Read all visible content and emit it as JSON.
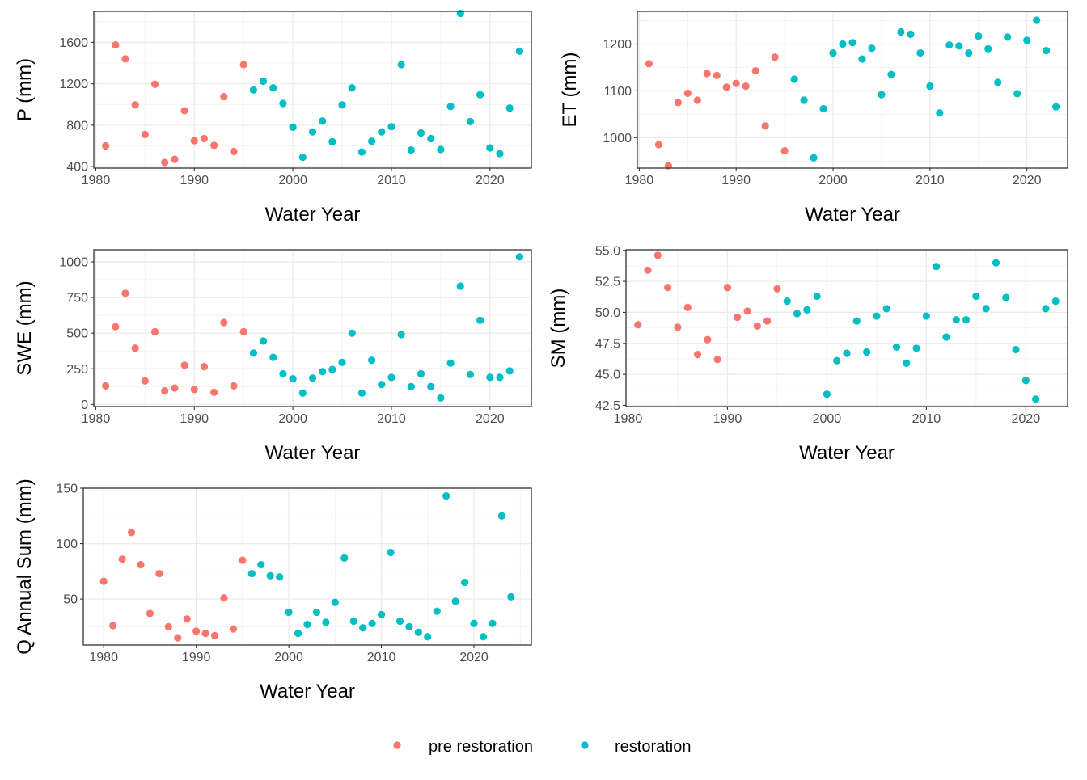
{
  "colors": {
    "pre_restoration": "#F8766D",
    "restoration": "#00BFC4"
  },
  "legend": {
    "position": "bottom",
    "entries": [
      {
        "key": "pre_restoration",
        "label": "pre restoration"
      },
      {
        "key": "restoration",
        "label": "restoration"
      }
    ]
  },
  "chart_data": [
    {
      "id": "p",
      "type": "scatter",
      "xlabel": "Water Year",
      "ylabel": "P (mm)",
      "xlim": [
        1979.8,
        2024.2
      ],
      "ylim": [
        385,
        1900
      ],
      "xticks": [
        1980,
        1990,
        2000,
        2010,
        2020
      ],
      "yticks": [
        400,
        800,
        1200,
        1600
      ],
      "ytick_labels": [
        "400",
        "800",
        "1200",
        "1600"
      ],
      "grid": true,
      "series": [
        {
          "name": "pre restoration",
          "key": "pre_restoration",
          "x": [
            1981,
            1982,
            1983,
            1984,
            1985,
            1986,
            1987,
            1988,
            1989,
            1990,
            1991,
            1992,
            1993,
            1994,
            1995
          ],
          "y": [
            600,
            1575,
            1440,
            995,
            710,
            1195,
            440,
            470,
            940,
            650,
            670,
            605,
            1075,
            545,
            1385
          ]
        },
        {
          "name": "restoration",
          "key": "restoration",
          "x": [
            1996,
            1997,
            1998,
            1999,
            2000,
            2001,
            2002,
            2003,
            2004,
            2005,
            2006,
            2007,
            2008,
            2009,
            2010,
            2011,
            2012,
            2013,
            2014,
            2015,
            2016,
            2017,
            2018,
            2019,
            2020,
            2021,
            2022,
            2023
          ],
          "y": [
            1140,
            1225,
            1160,
            1010,
            780,
            490,
            735,
            840,
            640,
            995,
            1160,
            540,
            645,
            735,
            785,
            1385,
            560,
            725,
            670,
            565,
            980,
            1880,
            835,
            1095,
            580,
            525,
            965,
            1515
          ]
        }
      ]
    },
    {
      "id": "et",
      "type": "scatter",
      "xlabel": "Water Year",
      "ylabel": "ET (mm)",
      "xlim": [
        1979.8,
        2024.2
      ],
      "ylim": [
        935,
        1270
      ],
      "xticks": [
        1980,
        1990,
        2000,
        2010,
        2020
      ],
      "yticks": [
        1000,
        1100,
        1200
      ],
      "ytick_labels": [
        "1000",
        "1100",
        "1200"
      ],
      "grid": true,
      "series": [
        {
          "name": "pre restoration",
          "key": "pre_restoration",
          "x": [
            1981,
            1982,
            1983,
            1984,
            1985,
            1986,
            1987,
            1988,
            1989,
            1990,
            1991,
            1992,
            1993,
            1994,
            1995
          ],
          "y": [
            1158,
            985,
            940,
            1075,
            1095,
            1080,
            1137,
            1133,
            1108,
            1116,
            1110,
            1143,
            1025,
            1172,
            972
          ]
        },
        {
          "name": "restoration",
          "key": "restoration",
          "x": [
            1996,
            1997,
            1998,
            1999,
            2000,
            2001,
            2002,
            2003,
            2004,
            2005,
            2006,
            2007,
            2008,
            2009,
            2010,
            2011,
            2012,
            2013,
            2014,
            2015,
            2016,
            2017,
            2018,
            2019,
            2020,
            2021,
            2022,
            2023
          ],
          "y": [
            1125,
            1080,
            957,
            1062,
            1181,
            1200,
            1203,
            1168,
            1191,
            1092,
            1135,
            1226,
            1221,
            1181,
            1110,
            1053,
            1198,
            1196,
            1181,
            1217,
            1190,
            1118,
            1215,
            1094,
            1208,
            1251,
            1186,
            1066
          ]
        }
      ]
    },
    {
      "id": "swe",
      "type": "scatter",
      "xlabel": "Water Year",
      "ylabel": "SWE (mm)",
      "xlim": [
        1979.8,
        2024.2
      ],
      "ylim": [
        -15,
        1085
      ],
      "xticks": [
        1980,
        1990,
        2000,
        2010,
        2020
      ],
      "yticks": [
        0,
        250,
        500,
        750,
        1000
      ],
      "ytick_labels": [
        "0",
        "250",
        "500",
        "750",
        "1000"
      ],
      "grid": true,
      "series": [
        {
          "name": "pre restoration",
          "key": "pre_restoration",
          "x": [
            1981,
            1982,
            1983,
            1984,
            1985,
            1986,
            1987,
            1988,
            1989,
            1990,
            1991,
            1992,
            1993,
            1994,
            1995
          ],
          "y": [
            130,
            545,
            780,
            395,
            165,
            510,
            95,
            115,
            275,
            105,
            265,
            85,
            575,
            130,
            510
          ]
        },
        {
          "name": "restoration",
          "key": "restoration",
          "x": [
            1996,
            1997,
            1998,
            1999,
            2000,
            2001,
            2002,
            2003,
            2004,
            2005,
            2006,
            2007,
            2008,
            2009,
            2010,
            2011,
            2012,
            2013,
            2014,
            2015,
            2016,
            2017,
            2018,
            2019,
            2020,
            2021,
            2022,
            2023
          ],
          "y": [
            360,
            445,
            330,
            215,
            180,
            80,
            185,
            230,
            245,
            295,
            500,
            80,
            310,
            140,
            190,
            490,
            125,
            215,
            125,
            45,
            290,
            830,
            210,
            590,
            190,
            190,
            235,
            1035
          ]
        }
      ]
    },
    {
      "id": "sm",
      "type": "scatter",
      "xlabel": "Water Year",
      "ylabel": "SM (mm)",
      "xlim": [
        1979.8,
        2024.2
      ],
      "ylim": [
        42.4,
        55.05
      ],
      "xticks": [
        1980,
        1990,
        2000,
        2010,
        2020
      ],
      "yticks": [
        42.5,
        45.0,
        47.5,
        50.0,
        52.5,
        55.0
      ],
      "ytick_labels": [
        "42.5",
        "45.0",
        "47.5",
        "50.0",
        "52.5",
        "55.0"
      ],
      "grid": true,
      "series": [
        {
          "name": "pre restoration",
          "key": "pre_restoration",
          "x": [
            1981,
            1982,
            1983,
            1984,
            1985,
            1986,
            1987,
            1988,
            1989,
            1990,
            1991,
            1992,
            1993,
            1994,
            1995
          ],
          "y": [
            49.0,
            53.4,
            54.6,
            52.0,
            48.8,
            50.4,
            46.6,
            47.8,
            46.2,
            52.0,
            49.6,
            50.1,
            48.9,
            49.3,
            51.9
          ]
        },
        {
          "name": "restoration",
          "key": "restoration",
          "x": [
            1996,
            1997,
            1998,
            1999,
            2000,
            2001,
            2002,
            2003,
            2004,
            2005,
            2006,
            2007,
            2008,
            2009,
            2010,
            2011,
            2012,
            2013,
            2014,
            2015,
            2016,
            2017,
            2018,
            2019,
            2020,
            2021,
            2022,
            2023
          ],
          "y": [
            50.9,
            49.9,
            50.2,
            51.3,
            43.4,
            46.1,
            46.7,
            49.3,
            46.8,
            49.7,
            50.3,
            47.2,
            45.9,
            47.1,
            49.7,
            53.7,
            48.0,
            49.4,
            49.4,
            51.3,
            50.3,
            54.0,
            51.2,
            47.0,
            44.5,
            43.0,
            50.3,
            50.9
          ]
        }
      ]
    },
    {
      "id": "q",
      "type": "scatter",
      "xlabel": "Water Year",
      "ylabel": "Q Annual Sum (mm)",
      "xlim": [
        1977.8,
        2026.2
      ],
      "ylim": [
        8.5,
        150
      ],
      "xticks": [
        1980,
        1990,
        2000,
        2010,
        2020
      ],
      "yticks": [
        50,
        100,
        150
      ],
      "ytick_labels": [
        "50",
        "100",
        "150"
      ],
      "grid": true,
      "series": [
        {
          "name": "pre restoration",
          "key": "pre_restoration",
          "x": [
            1980,
            1981,
            1982,
            1983,
            1984,
            1985,
            1986,
            1987,
            1988,
            1989,
            1990,
            1991,
            1992,
            1993,
            1994,
            1995
          ],
          "y": [
            66,
            26,
            86,
            110,
            81,
            37,
            73,
            25,
            15,
            32,
            21,
            19,
            17,
            51,
            23,
            85
          ]
        },
        {
          "name": "restoration",
          "key": "restoration",
          "x": [
            1996,
            1997,
            1998,
            1999,
            2000,
            2001,
            2002,
            2003,
            2004,
            2005,
            2006,
            2007,
            2008,
            2009,
            2010,
            2011,
            2012,
            2013,
            2014,
            2015,
            2016,
            2017,
            2018,
            2019,
            2020,
            2021,
            2022,
            2023,
            2024
          ],
          "y": [
            73,
            81,
            71,
            70,
            38,
            19,
            27,
            38,
            29,
            47,
            87,
            30,
            24,
            28,
            36,
            92,
            30,
            25,
            20,
            16,
            39,
            143,
            48,
            65,
            28,
            16,
            28,
            125,
            52
          ]
        }
      ]
    }
  ]
}
